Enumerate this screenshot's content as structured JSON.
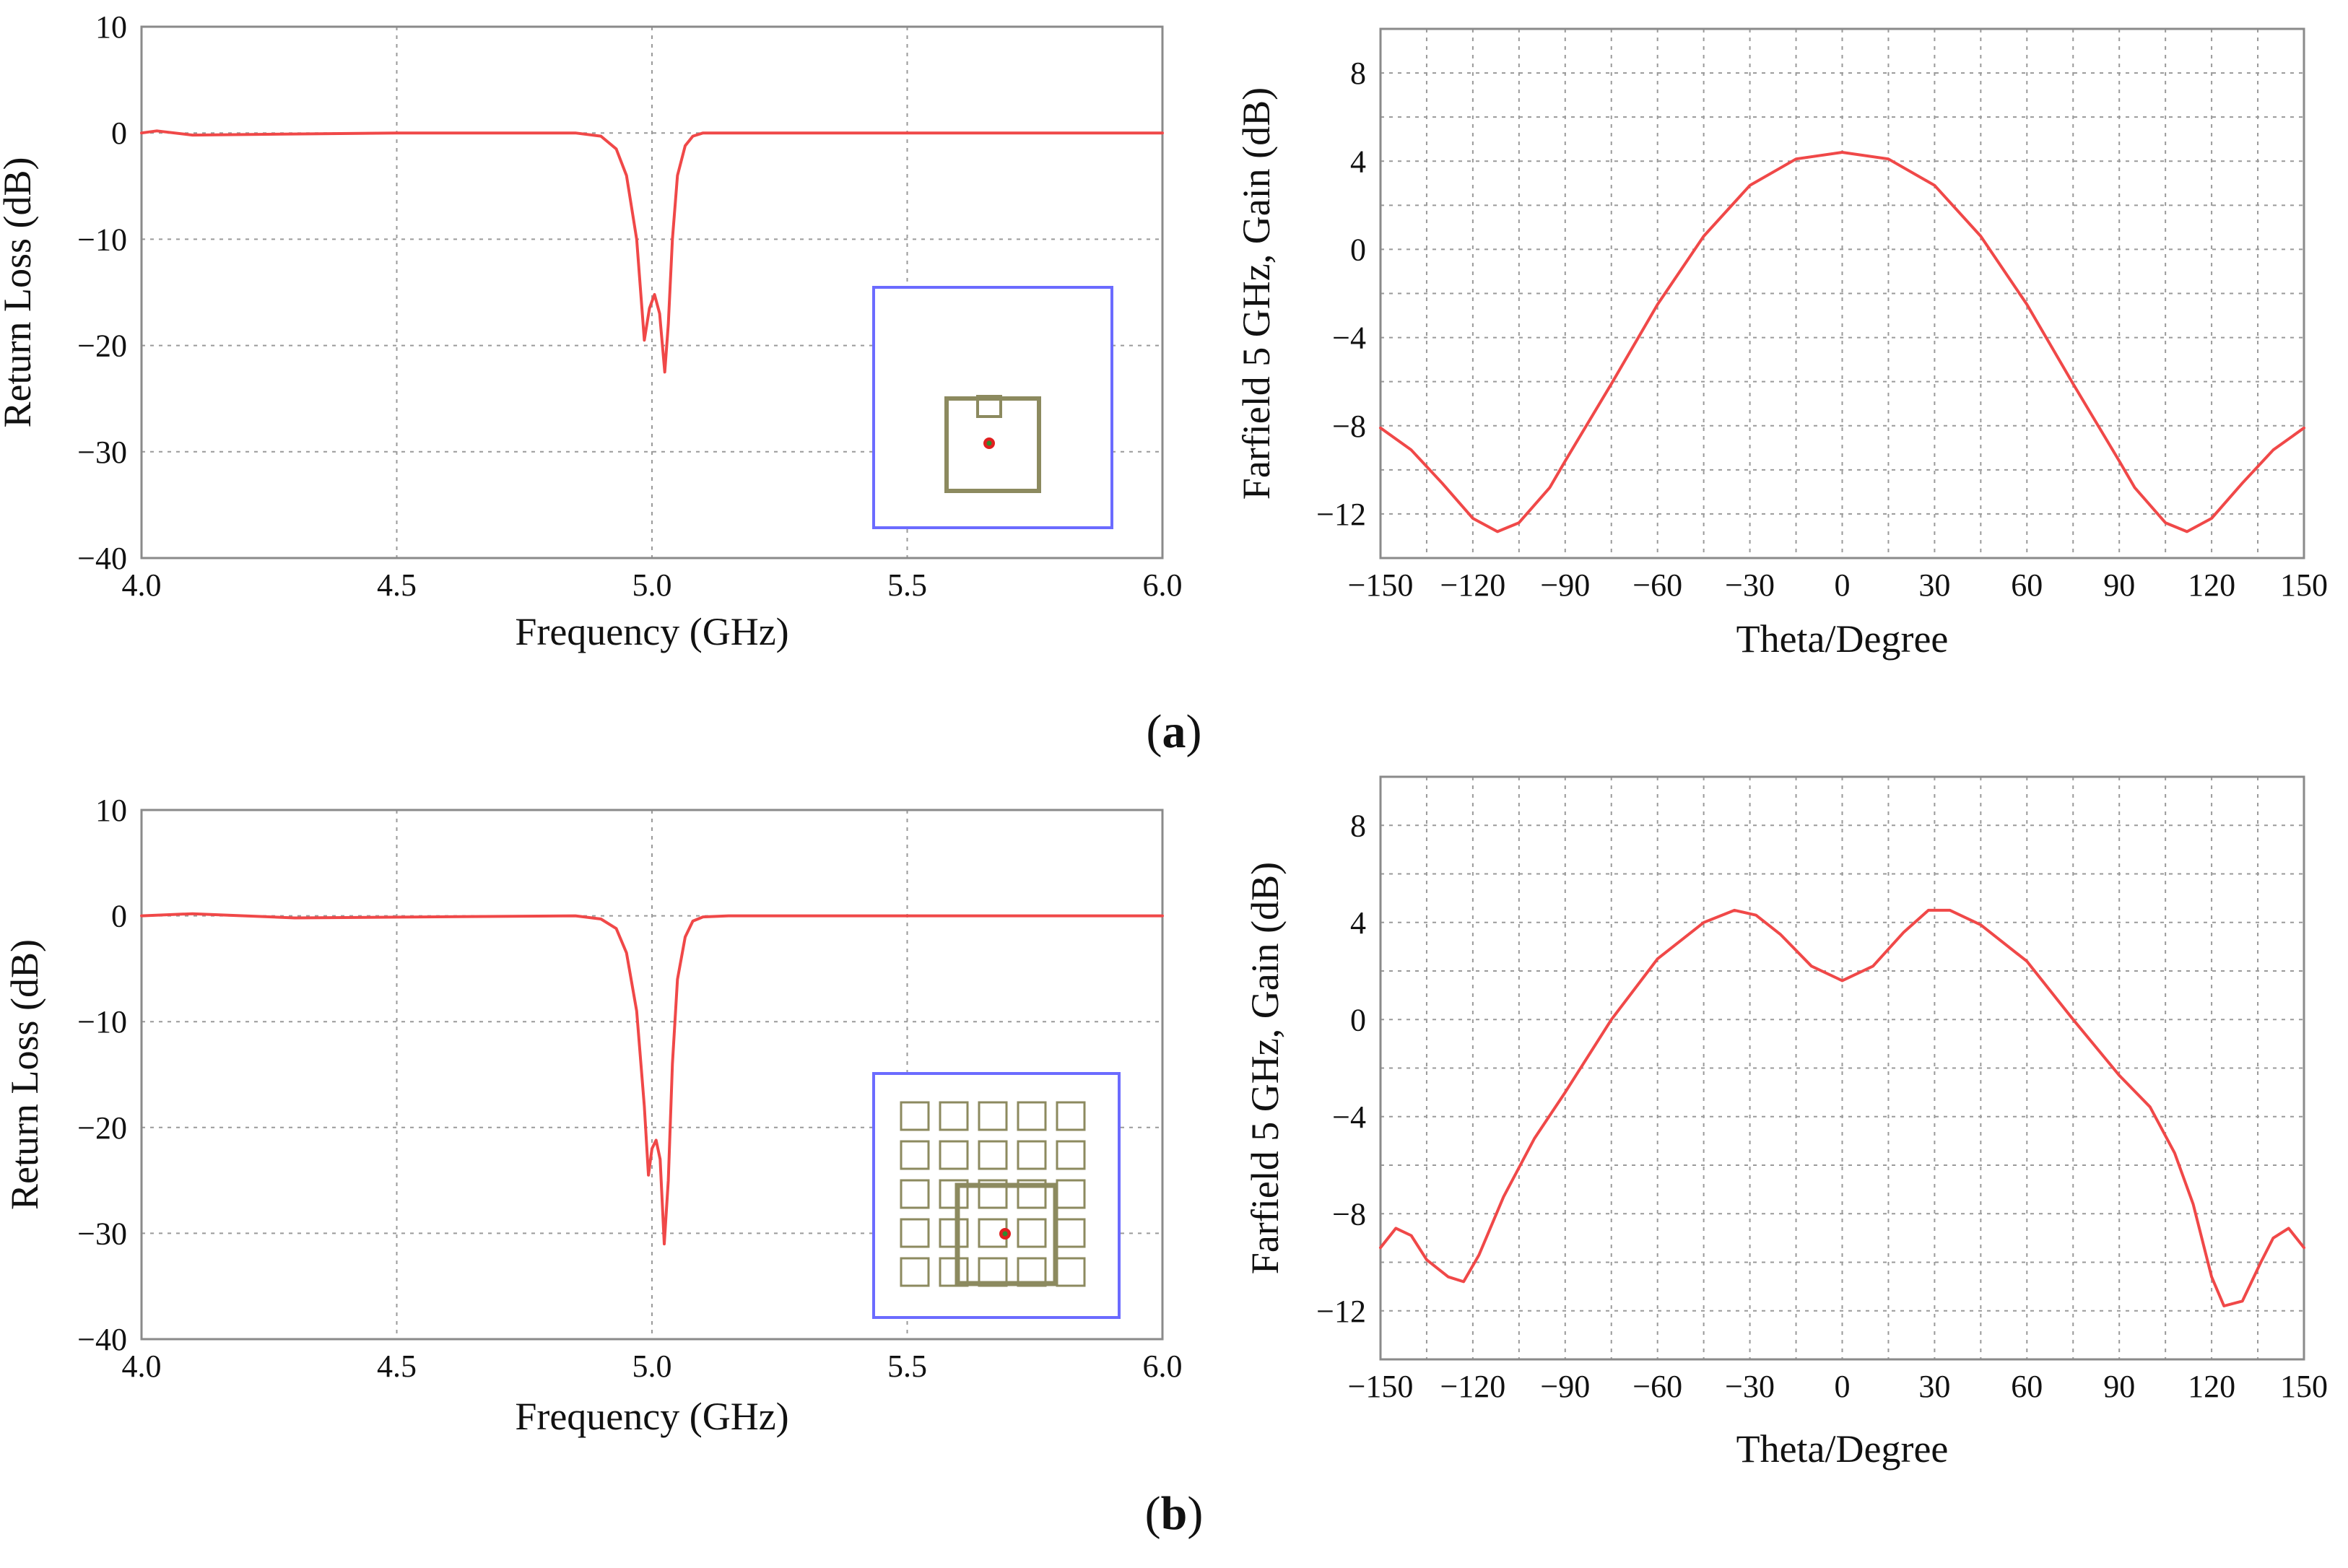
{
  "figure": {
    "caption_a_letter": "a",
    "caption_b_letter": "b"
  },
  "colors": {
    "curve": "#f04848",
    "grid": "#9a9a9a",
    "inset_border": "#6b6bff",
    "inset_element": "#8c8a5f",
    "inset_feed": "#e02020",
    "inset_feed_core": "#2e8b2e"
  },
  "chart_data": [
    {
      "id": "a-left",
      "type": "line",
      "xlabel": "Frequency (GHz)",
      "ylabel": "Return Loss (dB)",
      "xlim": [
        4.0,
        6.0
      ],
      "ylim": [
        -40,
        10
      ],
      "xticks": [
        "4.0",
        "4.5",
        "5.0",
        "5.5",
        "6.0"
      ],
      "yticks": [
        "10",
        "0",
        "−10",
        "−20",
        "−30",
        "−40"
      ],
      "grid": true,
      "inset": "single-patch",
      "series": [
        {
          "name": "Return Loss",
          "x": [
            4.0,
            4.03,
            4.1,
            4.5,
            4.85,
            4.9,
            4.93,
            4.95,
            4.97,
            4.985,
            4.995,
            5.005,
            5.015,
            5.025,
            5.032,
            5.04,
            5.05,
            5.065,
            5.08,
            5.1,
            5.15,
            5.5,
            6.0
          ],
          "y": [
            0,
            0.2,
            -0.2,
            0,
            0,
            -0.3,
            -1.5,
            -4,
            -10,
            -19.5,
            -16.5,
            -15.2,
            -17,
            -22.5,
            -18,
            -10,
            -4,
            -1.2,
            -0.3,
            0,
            0,
            0,
            0
          ]
        }
      ]
    },
    {
      "id": "a-right",
      "type": "line",
      "xlabel": "Theta/Degree",
      "ylabel": "Farfield 5 GHz, Gain (dB)",
      "xlim": [
        -150,
        150
      ],
      "ylim": [
        -14,
        10
      ],
      "xticks": [
        "−150",
        "−120",
        "−90",
        "−60",
        "−30",
        "0",
        "30",
        "60",
        "90",
        "120",
        "150"
      ],
      "yticks": [
        "8",
        "4",
        "0",
        "−4",
        "−8",
        "−12"
      ],
      "grid": true,
      "series": [
        {
          "name": "Gain",
          "x": [
            -150,
            -140,
            -130,
            -120,
            -112,
            -105,
            -95,
            -90,
            -75,
            -60,
            -45,
            -30,
            -15,
            0,
            15,
            30,
            45,
            60,
            75,
            90,
            95,
            105,
            112,
            120,
            130,
            140,
            150
          ],
          "y": [
            -8.1,
            -9.1,
            -10.6,
            -12.2,
            -12.8,
            -12.4,
            -10.8,
            -9.6,
            -6.1,
            -2.5,
            0.6,
            2.9,
            4.1,
            4.4,
            4.1,
            2.9,
            0.6,
            -2.5,
            -6.1,
            -9.6,
            -10.8,
            -12.4,
            -12.8,
            -12.2,
            -10.6,
            -9.1,
            -8.1
          ]
        }
      ]
    },
    {
      "id": "b-left",
      "type": "line",
      "xlabel": "Frequency (GHz)",
      "ylabel": "Return Loss (dB)",
      "xlim": [
        4.0,
        6.0
      ],
      "ylim": [
        -40,
        10
      ],
      "xticks": [
        "4.0",
        "4.5",
        "5.0",
        "5.5",
        "6.0"
      ],
      "yticks": [
        "10",
        "0",
        "−10",
        "−20",
        "−30",
        "−40"
      ],
      "grid": true,
      "inset": "patch-with-5x5-unit-cells",
      "series": [
        {
          "name": "Return Loss",
          "x": [
            4.0,
            4.1,
            4.3,
            4.85,
            4.9,
            4.93,
            4.95,
            4.97,
            4.985,
            4.993,
            5.0,
            5.008,
            5.016,
            5.024,
            5.032,
            5.04,
            5.05,
            5.065,
            5.08,
            5.1,
            5.15,
            5.5,
            6.0
          ],
          "y": [
            0,
            0.2,
            -0.2,
            0,
            -0.3,
            -1.2,
            -3.5,
            -9,
            -18,
            -24.5,
            -22,
            -21.2,
            -23,
            -31,
            -25,
            -14,
            -6,
            -2,
            -0.5,
            -0.1,
            0,
            0,
            0
          ]
        }
      ]
    },
    {
      "id": "b-right",
      "type": "line",
      "xlabel": "Theta/Degree",
      "ylabel": "Farfield 5 GHz, Gain (dB)",
      "xlim": [
        -150,
        150
      ],
      "ylim": [
        -14,
        10
      ],
      "xticks": [
        "−150",
        "−120",
        "−90",
        "−60",
        "−30",
        "0",
        "30",
        "60",
        "90",
        "120",
        "150"
      ],
      "yticks": [
        "8",
        "4",
        "0",
        "−4",
        "−8",
        "−12"
      ],
      "grid": true,
      "series": [
        {
          "name": "Gain",
          "x": [
            -150,
            -145,
            -140,
            -135,
            -128,
            -123,
            -118,
            -110,
            -100,
            -90,
            -75,
            -60,
            -45,
            -35,
            -28,
            -20,
            -10,
            0,
            10,
            20,
            28,
            35,
            45,
            60,
            75,
            90,
            100,
            108,
            114,
            120,
            124,
            130,
            136,
            140,
            145,
            150
          ],
          "y": [
            -9.4,
            -8.6,
            -8.9,
            -9.9,
            -10.6,
            -10.8,
            -9.7,
            -7.3,
            -4.9,
            -3.0,
            0.0,
            2.5,
            4.0,
            4.5,
            4.3,
            3.5,
            2.2,
            1.6,
            2.2,
            3.6,
            4.5,
            4.5,
            3.9,
            2.4,
            0.0,
            -2.3,
            -3.6,
            -5.5,
            -7.6,
            -10.6,
            -11.8,
            -11.6,
            -10.0,
            -9.0,
            -8.6,
            -9.4
          ]
        }
      ]
    }
  ]
}
